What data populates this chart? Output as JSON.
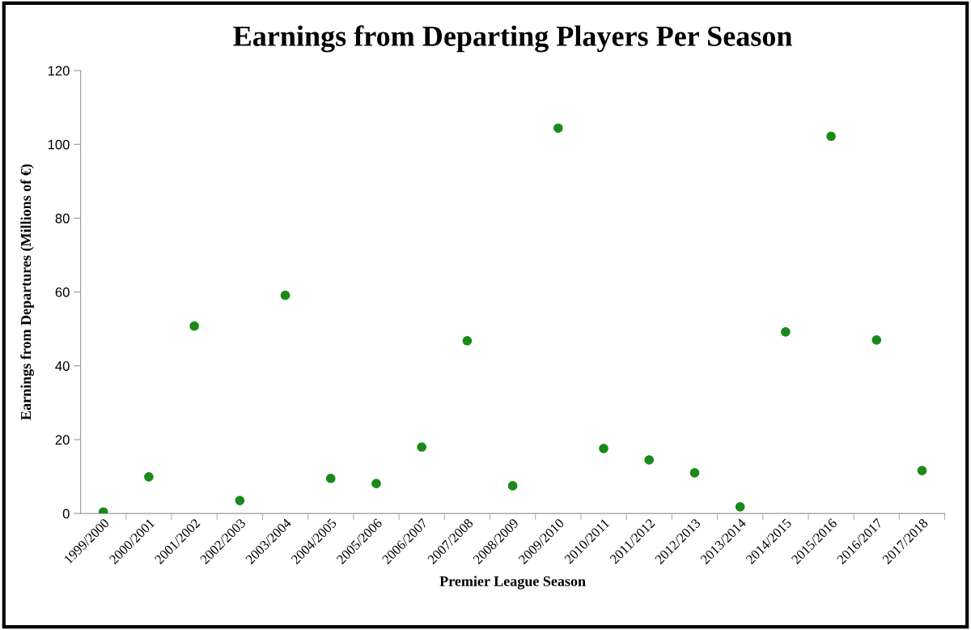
{
  "chart_data": {
    "type": "scatter",
    "title": "Earnings from Departing Players Per Season",
    "xlabel": "Premier League Season",
    "ylabel": "Earnings from Departures (Millions of €)",
    "categories": [
      "1999/2000",
      "2000/2001",
      "2001/2002",
      "2002/2003",
      "2003/2004",
      "2004/2005",
      "2005/2006",
      "2006/2007",
      "2007/2008",
      "2008/2009",
      "2009/2010",
      "2010/2011",
      "2011/2012",
      "2012/2013",
      "2013/2014",
      "2014/2015",
      "2015/2016",
      "2016/2017",
      "2017/2018"
    ],
    "series": [
      {
        "color": "#1a8a1a",
        "values": [
          0.4,
          9.9,
          50.8,
          3.5,
          59.1,
          9.5,
          8.1,
          18.0,
          46.8,
          7.5,
          104.4,
          17.6,
          14.5,
          11.0,
          1.8,
          49.2,
          102.2,
          47.0,
          11.6
        ]
      }
    ],
    "ylim": [
      0,
      120
    ],
    "yticks": [
      0,
      20,
      40,
      60,
      80,
      100,
      120
    ],
    "grid": false,
    "marker": "circle",
    "legend": false
  }
}
